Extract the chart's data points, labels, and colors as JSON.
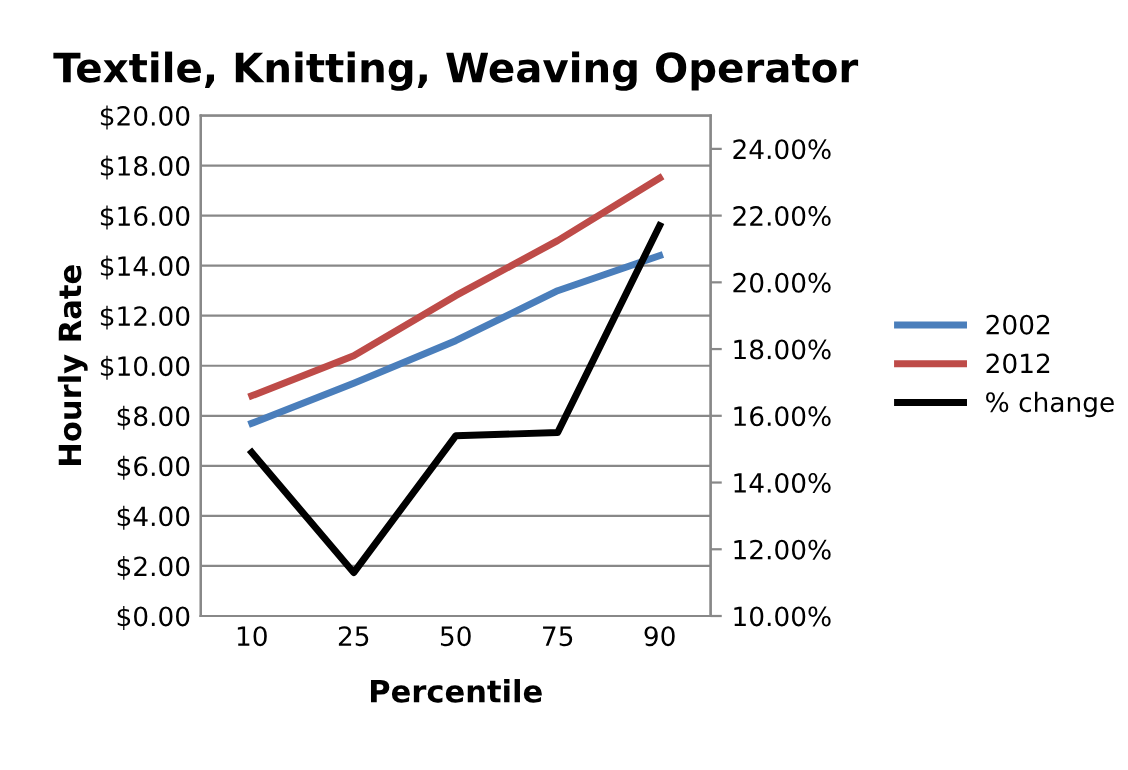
{
  "chart_data": {
    "type": "line",
    "title": "Textile, Knitting, Weaving Operator",
    "xlabel": "Percentile",
    "ylabel": "Hourly Rate",
    "categories": [
      "10",
      "25",
      "50",
      "75",
      "90"
    ],
    "series": [
      {
        "name": "2002",
        "color": "#4a7ebb",
        "values": [
          7.7,
          9.3,
          11.0,
          13.0,
          14.4
        ]
      },
      {
        "name": "2012",
        "color": "#be4b48",
        "values": [
          8.8,
          10.4,
          12.8,
          15.0,
          17.5
        ]
      },
      {
        "name": "% change",
        "color": "#000000",
        "axis": "y2",
        "values": [
          14.9,
          11.3,
          15.4,
          15.5,
          21.7
        ]
      }
    ],
    "ylim": [
      0,
      20
    ],
    "yticks": [
      {
        "value": 0,
        "label": "$0.00"
      },
      {
        "value": 2,
        "label": "$2.00"
      },
      {
        "value": 4,
        "label": "$4.00"
      },
      {
        "value": 6,
        "label": "$6.00"
      },
      {
        "value": 8,
        "label": "$8.00"
      },
      {
        "value": 10,
        "label": "$10.00"
      },
      {
        "value": 12,
        "label": "$12.00"
      },
      {
        "value": 14,
        "label": "$14.00"
      },
      {
        "value": 16,
        "label": "$16.00"
      },
      {
        "value": 18,
        "label": "$18.00"
      },
      {
        "value": 20,
        "label": "$20.00"
      }
    ],
    "y2lim": [
      10,
      25
    ],
    "y2ticks": [
      {
        "value": 10,
        "label": "10.00%"
      },
      {
        "value": 12,
        "label": "12.00%"
      },
      {
        "value": 14,
        "label": "14.00%"
      },
      {
        "value": 16,
        "label": "16.00%"
      },
      {
        "value": 18,
        "label": "18.00%"
      },
      {
        "value": 20,
        "label": "20.00%"
      },
      {
        "value": 22,
        "label": "22.00%"
      },
      {
        "value": 24,
        "label": "24.00%"
      }
    ],
    "grid": "y",
    "legend": "right",
    "marker": "none",
    "line_style": "solid"
  }
}
